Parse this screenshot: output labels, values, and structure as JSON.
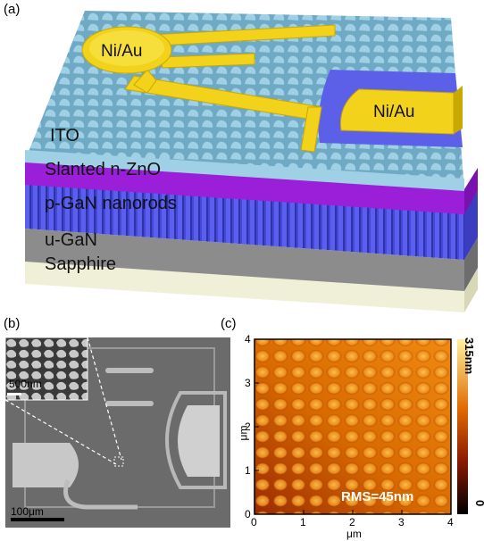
{
  "panel_a": {
    "label": "(a)",
    "layers": {
      "ito": "ITO",
      "zno": "Slanted n-ZnO",
      "pgan": "p-GaN nanorods",
      "ugan": "u-GaN",
      "sapphire": "Sapphire"
    },
    "contact_left": "Ni/Au",
    "contact_right": "Ni/Au",
    "colors": {
      "ito": "#8fc3db",
      "zno": "#9b1fd8",
      "pgan": "#4b4ee0",
      "ugan": "#8a8a8a",
      "sapphire": "#f0f0d8",
      "contact": "#f2d21a"
    }
  },
  "panel_b": {
    "label": "(b)",
    "scale_inset": "500nm",
    "scale_main": "100μm"
  },
  "panel_c": {
    "label": "(c)",
    "xlabel": "μm",
    "ylabel": "μm",
    "xticks": [
      "0",
      "1",
      "2",
      "3",
      "4"
    ],
    "yticks": [
      "0",
      "1",
      "2",
      "3",
      "4"
    ],
    "colorbar_max": "315nm",
    "colorbar_min": "0",
    "rms": "RMS=45nm",
    "colors": {
      "dark": "#1a0400",
      "mid": "#d65a00",
      "light": "#ffe080"
    }
  }
}
